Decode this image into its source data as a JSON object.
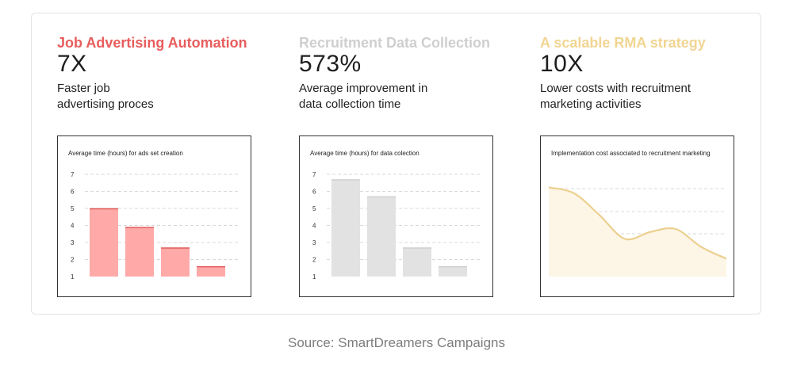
{
  "colors": {
    "red_title": "#e85d5d",
    "gray_title": "#cfcfcf",
    "yellow_title": "#f1d592",
    "red_bar": "#ffa9a9",
    "red_bar_top": "#e05a5a",
    "gray_bar": "#e2e2e2",
    "gray_bar_top": "#cfcfcf",
    "yellow_line": "#ecd08f",
    "yellow_fill": "#fdf6e6",
    "grid": "#d9d9d9"
  },
  "stats": [
    {
      "title": "Job Advertising Automation",
      "value": "7X",
      "desc_line1": "Faster job",
      "desc_line2": "advertising proces"
    },
    {
      "title": "Recruitment Data Collection",
      "value": "573%",
      "desc_line1": "Average improvement in",
      "desc_line2": "data collection time"
    },
    {
      "title": "A scalable RMA strategy",
      "value": "10X",
      "desc_line1": "Lower costs with recruitment",
      "desc_line2": "marketing activities"
    }
  ],
  "chart_data": [
    {
      "type": "bar",
      "title": "Average time (hours) for ads set creation",
      "yticks": [
        "1",
        "2",
        "3",
        "4",
        "5",
        "6",
        "7"
      ],
      "ylim": [
        1,
        7
      ],
      "values": [
        5.0,
        3.9,
        2.7,
        1.6
      ],
      "grid": true
    },
    {
      "type": "bar",
      "title": "Average time (hours) for data colection",
      "yticks": [
        "1",
        "2",
        "3",
        "4",
        "5",
        "6",
        "7"
      ],
      "ylim": [
        1,
        7
      ],
      "values": [
        6.7,
        5.7,
        2.7,
        1.6
      ],
      "grid": true
    },
    {
      "type": "area",
      "title": "Implementation cost associated to recruitment marketing",
      "values": [
        0.9,
        0.84,
        0.62,
        0.38,
        0.45,
        0.48,
        0.3,
        0.18
      ],
      "grid": true
    }
  ],
  "source": "Source: SmartDreamers Campaigns"
}
